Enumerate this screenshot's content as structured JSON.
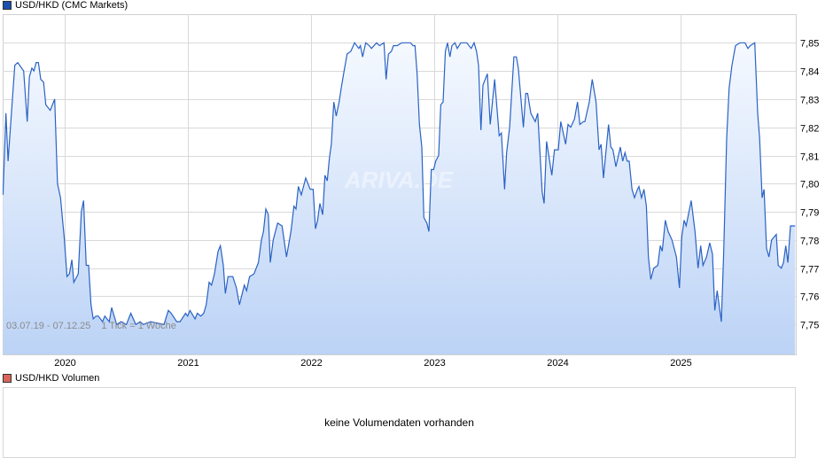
{
  "legend_main": {
    "label": "USD/HKD (CMC Markets)",
    "color": "#1a4fb0"
  },
  "legend_volume": {
    "label": "USD/HKD Volumen",
    "color": "#d9645a"
  },
  "volume_message": "keine Volumendaten vorhanden",
  "range_label": "03.07.19 - 07.12.25",
  "tick_label": "1 Tick = 1 Woche",
  "watermark": "ARIVA.DE",
  "colors": {
    "line": "#2a62c4",
    "fill_top": "#f5f9ff",
    "fill_bottom": "#bcd3f6",
    "grid": "#d9d9d9"
  },
  "chart_data": {
    "type": "area",
    "xlabel": "",
    "ylabel": "",
    "xlim": [
      "2019-07-03",
      "2025-12-07"
    ],
    "ylim": [
      7.7395,
      7.8605
    ],
    "grid": true,
    "legend": "top-left",
    "x_ticks": [
      "2020",
      "2021",
      "2022",
      "2023",
      "2024",
      "2025"
    ],
    "y_ticks": [
      "7,75",
      "7,76",
      "7,77",
      "7,78",
      "7,79",
      "7,80",
      "7,81",
      "7,82",
      "7,83",
      "7,84",
      "7,85"
    ],
    "series": [
      {
        "name": "USD/HKD (CMC Markets)",
        "points_decimal_year": [
          [
            2019.499,
            7.796
          ],
          [
            2019.523,
            7.825
          ],
          [
            2019.54,
            7.808
          ],
          [
            2019.595,
            7.842
          ],
          [
            2019.619,
            7.843
          ],
          [
            2019.667,
            7.84
          ],
          [
            2019.696,
            7.822
          ],
          [
            2019.714,
            7.838
          ],
          [
            2019.734,
            7.841
          ],
          [
            2019.75,
            7.84
          ],
          [
            2019.768,
            7.843
          ],
          [
            2019.786,
            7.843
          ],
          [
            2019.806,
            7.837
          ],
          [
            2019.829,
            7.836
          ],
          [
            2019.847,
            7.828
          ],
          [
            2019.883,
            7.826
          ],
          [
            2019.919,
            7.83
          ],
          [
            2019.942,
            7.8
          ],
          [
            2019.966,
            7.795
          ],
          [
            2019.998,
            7.78
          ],
          [
            2020.019,
            7.767
          ],
          [
            2020.038,
            7.768
          ],
          [
            2020.058,
            7.773
          ],
          [
            2020.074,
            7.765
          ],
          [
            2020.11,
            7.768
          ],
          [
            2020.135,
            7.79
          ],
          [
            2020.153,
            7.794
          ],
          [
            2020.175,
            7.771
          ],
          [
            2020.194,
            7.771
          ],
          [
            2020.214,
            7.757
          ],
          [
            2020.232,
            7.752
          ],
          [
            2020.254,
            7.753
          ],
          [
            2020.273,
            7.753
          ],
          [
            2020.29,
            7.752
          ],
          [
            2020.307,
            7.751
          ],
          [
            2020.326,
            7.753
          ],
          [
            2020.362,
            7.751
          ],
          [
            2020.381,
            7.756
          ],
          [
            2020.422,
            7.75
          ],
          [
            2020.458,
            7.751
          ],
          [
            2020.501,
            7.75
          ],
          [
            2020.537,
            7.754
          ],
          [
            2020.578,
            7.75
          ],
          [
            2020.614,
            7.751
          ],
          [
            2020.638,
            7.75
          ],
          [
            2020.698,
            7.751
          ],
          [
            2020.806,
            7.75
          ],
          [
            2020.842,
            7.755
          ],
          [
            2020.865,
            7.754
          ],
          [
            2020.909,
            7.751
          ],
          [
            2020.937,
            7.751
          ],
          [
            2020.981,
            7.754
          ],
          [
            2020.998,
            7.753
          ],
          [
            2021.017,
            7.755
          ],
          [
            2021.058,
            7.752
          ],
          [
            2021.077,
            7.754
          ],
          [
            2021.106,
            7.753
          ],
          [
            2021.129,
            7.754
          ],
          [
            2021.149,
            7.757
          ],
          [
            2021.173,
            7.765
          ],
          [
            2021.192,
            7.764
          ],
          [
            2021.216,
            7.768
          ],
          [
            2021.245,
            7.776
          ],
          [
            2021.264,
            7.778
          ],
          [
            2021.288,
            7.771
          ],
          [
            2021.304,
            7.761
          ],
          [
            2021.326,
            7.767
          ],
          [
            2021.345,
            7.767
          ],
          [
            2021.365,
            7.767
          ],
          [
            2021.394,
            7.763
          ],
          [
            2021.419,
            7.757
          ],
          [
            2021.458,
            7.764
          ],
          [
            2021.477,
            7.762
          ],
          [
            2021.501,
            7.767
          ],
          [
            2021.537,
            7.768
          ],
          [
            2021.573,
            7.772
          ],
          [
            2021.597,
            7.78
          ],
          [
            2021.614,
            7.783
          ],
          [
            2021.633,
            7.791
          ],
          [
            2021.653,
            7.789
          ],
          [
            2021.669,
            7.772
          ],
          [
            2021.693,
            7.78
          ],
          [
            2021.729,
            7.786
          ],
          [
            2021.765,
            7.785
          ],
          [
            2021.801,
            7.774
          ],
          [
            2021.837,
            7.783
          ],
          [
            2021.861,
            7.792
          ],
          [
            2021.878,
            7.791
          ],
          [
            2021.897,
            7.799
          ],
          [
            2021.921,
            7.796
          ],
          [
            2021.957,
            7.802
          ],
          [
            2021.993,
            7.798
          ],
          [
            2022.017,
            7.798
          ],
          [
            2022.036,
            7.784
          ],
          [
            2022.053,
            7.787
          ],
          [
            2022.072,
            7.793
          ],
          [
            2022.094,
            7.789
          ],
          [
            2022.113,
            7.803
          ],
          [
            2022.132,
            7.801
          ],
          [
            2022.149,
            7.809
          ],
          [
            2022.165,
            7.814
          ],
          [
            2022.185,
            7.829
          ],
          [
            2022.204,
            7.824
          ],
          [
            2022.228,
            7.829
          ],
          [
            2022.245,
            7.834
          ],
          [
            2022.268,
            7.84
          ],
          [
            2022.293,
            7.846
          ],
          [
            2022.324,
            7.847
          ],
          [
            2022.353,
            7.85
          ],
          [
            2022.388,
            7.848
          ],
          [
            2022.401,
            7.849
          ],
          [
            2022.419,
            7.845
          ],
          [
            2022.444,
            7.85
          ],
          [
            2022.473,
            7.849
          ],
          [
            2022.491,
            7.848
          ],
          [
            2022.532,
            7.85
          ],
          [
            2022.556,
            7.849
          ],
          [
            2022.592,
            7.85
          ],
          [
            2022.609,
            7.837
          ],
          [
            2022.628,
            7.846
          ],
          [
            2022.653,
            7.847
          ],
          [
            2022.669,
            7.849
          ],
          [
            2022.7,
            7.849
          ],
          [
            2022.736,
            7.85
          ],
          [
            2022.808,
            7.85
          ],
          [
            2022.827,
            7.849
          ],
          [
            2022.844,
            7.849
          ],
          [
            2022.861,
            7.839
          ],
          [
            2022.88,
            7.821
          ],
          [
            2022.899,
            7.813
          ],
          [
            2022.916,
            7.788
          ],
          [
            2022.94,
            7.786
          ],
          [
            2022.957,
            7.783
          ],
          [
            2022.976,
            7.805
          ],
          [
            2022.995,
            7.805
          ],
          [
            2023.012,
            7.808
          ],
          [
            2023.036,
            7.81
          ],
          [
            2023.053,
            7.828
          ],
          [
            2023.072,
            7.829
          ],
          [
            2023.091,
            7.847
          ],
          [
            2023.108,
            7.85
          ],
          [
            2023.127,
            7.845
          ],
          [
            2023.144,
            7.849
          ],
          [
            2023.168,
            7.85
          ],
          [
            2023.187,
            7.848
          ],
          [
            2023.216,
            7.85
          ],
          [
            2023.264,
            7.85
          ],
          [
            2023.3,
            7.848
          ],
          [
            2023.324,
            7.85
          ],
          [
            2023.343,
            7.847
          ],
          [
            2023.36,
            7.842
          ],
          [
            2023.379,
            7.819
          ],
          [
            2023.396,
            7.835
          ],
          [
            2023.432,
            7.839
          ],
          [
            2023.455,
            7.821
          ],
          [
            2023.491,
            7.837
          ],
          [
            2023.527,
            7.817
          ],
          [
            2023.545,
            7.818
          ],
          [
            2023.571,
            7.798
          ],
          [
            2023.588,
            7.811
          ],
          [
            2023.612,
            7.82
          ],
          [
            2023.647,
            7.845
          ],
          [
            2023.667,
            7.845
          ],
          [
            2023.683,
            7.841
          ],
          [
            2023.724,
            7.82
          ],
          [
            2023.743,
            7.832
          ],
          [
            2023.758,
            7.832
          ],
          [
            2023.784,
            7.825
          ],
          [
            2023.82,
            7.822
          ],
          [
            2023.84,
            7.825
          ],
          [
            2023.876,
            7.797
          ],
          [
            2023.892,
            7.793
          ],
          [
            2023.912,
            7.815
          ],
          [
            2023.955,
            7.803
          ],
          [
            2023.976,
            7.812
          ],
          [
            2024.007,
            7.812
          ],
          [
            2024.027,
            7.822
          ],
          [
            2024.067,
            7.814
          ],
          [
            2024.086,
            7.821
          ],
          [
            2024.108,
            7.82
          ],
          [
            2024.139,
            7.823
          ],
          [
            2024.163,
            7.829
          ],
          [
            2024.182,
            7.821
          ],
          [
            2024.211,
            7.822
          ],
          [
            2024.223,
            7.822
          ],
          [
            2024.259,
            7.829
          ],
          [
            2024.283,
            7.837
          ],
          [
            2024.314,
            7.829
          ],
          [
            2024.338,
            7.812
          ],
          [
            2024.355,
            7.814
          ],
          [
            2024.374,
            7.802
          ],
          [
            2024.415,
            7.821
          ],
          [
            2024.434,
            7.813
          ],
          [
            2024.451,
            7.812
          ],
          [
            2024.475,
            7.806
          ],
          [
            2024.511,
            7.813
          ],
          [
            2024.53,
            7.808
          ],
          [
            2024.549,
            7.811
          ],
          [
            2024.566,
            7.808
          ],
          [
            2024.583,
            7.808
          ],
          [
            2024.606,
            7.798
          ],
          [
            2024.626,
            7.795
          ],
          [
            2024.65,
            7.798
          ],
          [
            2024.662,
            7.799
          ],
          [
            2024.683,
            7.795
          ],
          [
            2024.703,
            7.798
          ],
          [
            2024.722,
            7.792
          ],
          [
            2024.739,
            7.774
          ],
          [
            2024.758,
            7.766
          ],
          [
            2024.782,
            7.77
          ],
          [
            2024.815,
            7.771
          ],
          [
            2024.835,
            7.778
          ],
          [
            2024.851,
            7.776
          ],
          [
            2024.876,
            7.787
          ],
          [
            2024.899,
            7.783
          ],
          [
            2024.93,
            7.78
          ],
          [
            2024.966,
            7.774
          ],
          [
            2024.991,
            7.763
          ],
          [
            2025.009,
            7.781
          ],
          [
            2025.029,
            7.787
          ],
          [
            2025.045,
            7.785
          ],
          [
            2025.086,
            7.794
          ],
          [
            2025.117,
            7.783
          ],
          [
            2025.142,
            7.77
          ],
          [
            2025.163,
            7.778
          ],
          [
            2025.182,
            7.771
          ],
          [
            2025.211,
            7.774
          ],
          [
            2025.237,
            7.779
          ],
          [
            2025.259,
            7.775
          ],
          [
            2025.278,
            7.755
          ],
          [
            2025.297,
            7.762
          ],
          [
            2025.331,
            7.751
          ],
          [
            2025.35,
            7.775
          ],
          [
            2025.374,
            7.816
          ],
          [
            2025.394,
            7.834
          ],
          [
            2025.417,
            7.842
          ],
          [
            2025.446,
            7.849
          ],
          [
            2025.482,
            7.85
          ],
          [
            2025.523,
            7.85
          ],
          [
            2025.547,
            7.848
          ],
          [
            2025.566,
            7.849
          ],
          [
            2025.602,
            7.85
          ],
          [
            2025.626,
            7.825
          ],
          [
            2025.642,
            7.816
          ],
          [
            2025.662,
            7.795
          ],
          [
            2025.678,
            7.798
          ],
          [
            2025.698,
            7.777
          ],
          [
            2025.717,
            7.774
          ],
          [
            2025.739,
            7.78
          ],
          [
            2025.777,
            7.782
          ],
          [
            2025.793,
            7.771
          ],
          [
            2025.818,
            7.77
          ],
          [
            2025.835,
            7.772
          ],
          [
            2025.854,
            7.778
          ],
          [
            2025.871,
            7.772
          ],
          [
            2025.892,
            7.785
          ],
          [
            2025.914,
            7.785
          ],
          [
            2025.93,
            7.785
          ]
        ]
      }
    ]
  }
}
